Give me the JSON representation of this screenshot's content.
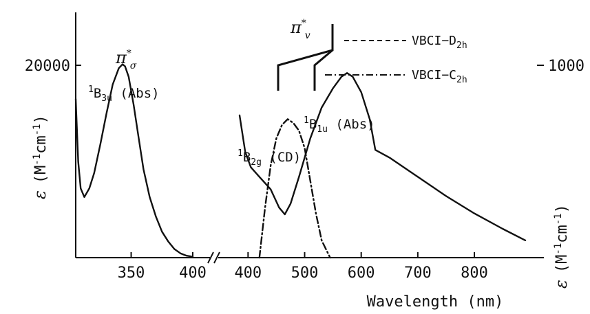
{
  "chart_data": {
    "type": "line",
    "xlabel": "Wavelength (nm)",
    "ylabel_left": "ε (M⁻¹cm⁻¹)",
    "ylabel_right": "ε (M⁻¹cm⁻¹)",
    "ylabel_parts": {
      "eps": "ε",
      "open": "(M",
      "sup1": "-1",
      "mid": "cm",
      "sup2": "-1",
      "close": ")"
    },
    "broken_x_axis": true,
    "panels": [
      {
        "xlim": [
          305,
          400
        ],
        "ylim": [
          0,
          25000
        ],
        "yaxis": "left",
        "xticks": [
          350,
          400
        ],
        "yticks": [
          20000
        ],
        "series": [
          {
            "name": "¹B3u (Abs)",
            "style": "solid",
            "x": [
              305,
              307,
              309,
              312,
              316,
              320,
              325,
              330,
              335,
              340,
              343,
              345,
              348,
              352,
              356,
              360,
              365,
              370,
              375,
              380,
              385,
              390,
              395,
              400
            ],
            "y": [
              16500,
              10000,
              7200,
              6300,
              7200,
              8800,
              11800,
              15000,
              18000,
              19700,
              20100,
              19900,
              18800,
              15900,
              12500,
              9200,
              6300,
              4300,
              2700,
              1700,
              900,
              450,
              200,
              100
            ]
          }
        ]
      },
      {
        "xlim": [
          385,
          890
        ],
        "ylim": [
          0,
          1250
        ],
        "yaxis": "right",
        "xticks": [
          400,
          500,
          600,
          700,
          800
        ],
        "yticks": [
          1000
        ],
        "series": [
          {
            "name": "¹B1u (Abs)",
            "style": "solid",
            "x": [
              385,
              395,
              405,
              420,
              440,
              455,
              465,
              475,
              490,
              510,
              530,
              550,
              565,
              575,
              585,
              600,
              615,
              625,
              650,
              700,
              750,
              800,
              850,
              890
            ],
            "y": [
              740,
              550,
              470,
              420,
              355,
              260,
              225,
              280,
              420,
              620,
              780,
              880,
              940,
              960,
              940,
              860,
              720,
              560,
              520,
              420,
              320,
              230,
              150,
              90
            ]
          },
          {
            "name": "¹B2g (CD)",
            "style": "dashdot",
            "x": [
              420,
              430,
              440,
              450,
              460,
              470,
              480,
              490,
              500,
              510,
              520,
              530,
              545
            ],
            "y": [
              0,
              260,
              480,
              620,
              690,
              720,
              700,
              660,
              570,
              400,
              230,
              90,
              0
            ]
          }
        ]
      }
    ],
    "annotations": {
      "pi_sigma": {
        "main": "π",
        "sup": "*",
        "sub": "σ"
      },
      "b3u": {
        "sup": "1",
        "main": "B",
        "sub": "3u",
        "tail": " (Abs)"
      },
      "b1u": {
        "sup": "1",
        "main": "B",
        "sub": "1u",
        "tail": " (Abs)"
      },
      "b2g": {
        "sup": "1",
        "main": "B",
        "sub": "2g",
        "tail": " (CD)"
      },
      "pi_v": {
        "main": "π",
        "sup": "*",
        "sub": "v"
      }
    },
    "legend": {
      "placement": "top-right",
      "entries": [
        {
          "style": "dashed",
          "label": "VBCI−D",
          "sub": "2h"
        },
        {
          "style": "dashdot",
          "label": "VBCI−C",
          "sub": "2h"
        }
      ]
    }
  }
}
